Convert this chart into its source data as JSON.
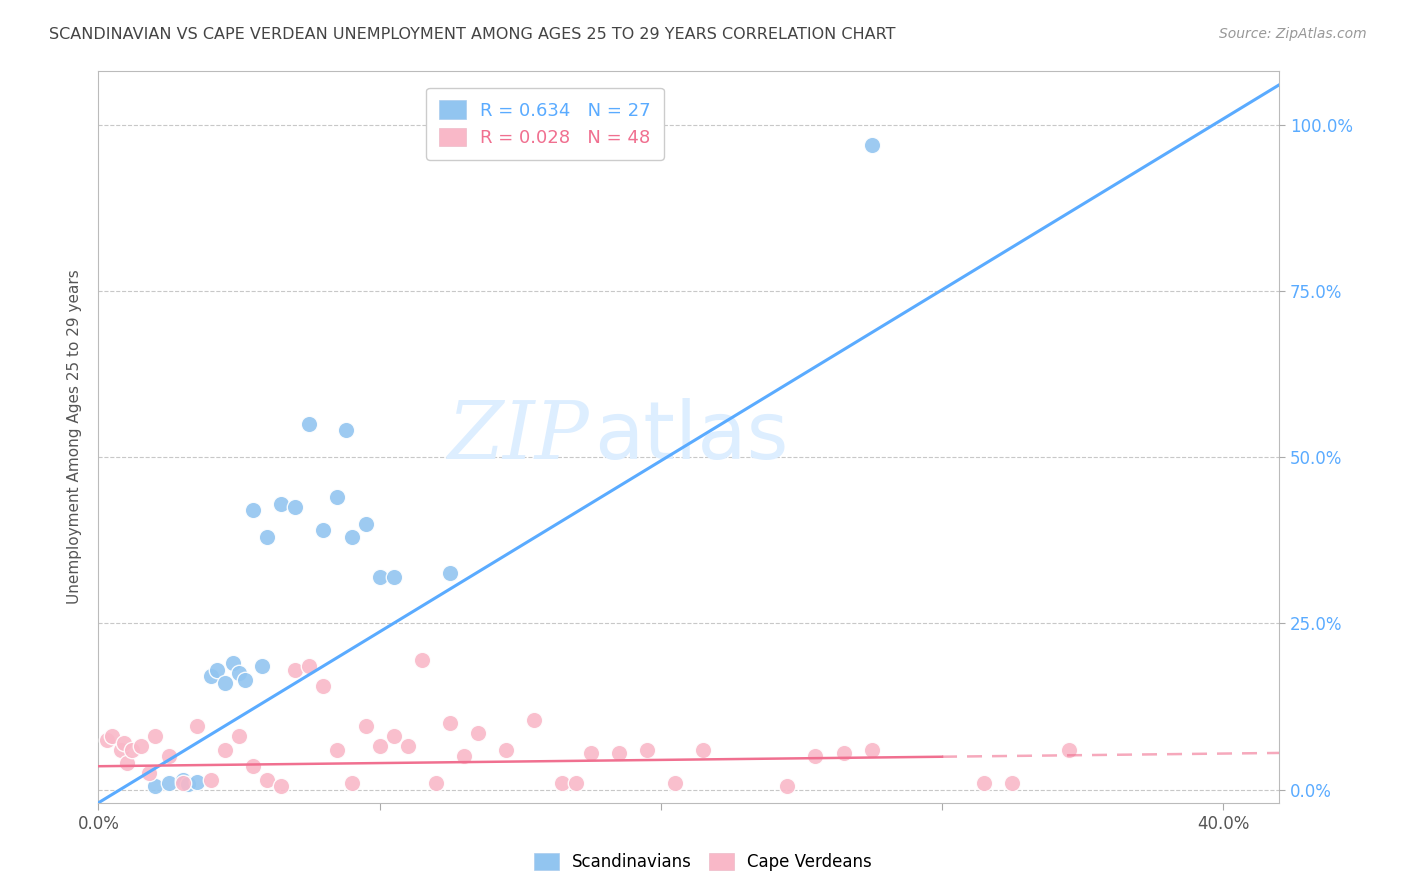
{
  "title": "SCANDINAVIAN VS CAPE VERDEAN UNEMPLOYMENT AMONG AGES 25 TO 29 YEARS CORRELATION CHART",
  "source": "Source: ZipAtlas.com",
  "ylabel": "Unemployment Among Ages 25 to 29 years",
  "blue_R": 0.634,
  "blue_N": 27,
  "pink_R": 0.028,
  "pink_N": 48,
  "background_color": "#ffffff",
  "blue_color": "#92c5f0",
  "pink_color": "#f9b8c8",
  "blue_line_color": "#5aabff",
  "pink_line_color": "#f07090",
  "right_axis_color": "#5aabff",
  "grid_color": "#c8c8c8",
  "title_color": "#444444",
  "watermark_color": "#ddeeff",
  "legend_blue_label": "R = 0.634   N = 27",
  "legend_pink_label": "R = 0.028   N = 48",
  "blue_scatter_x": [
    2.0,
    2.5,
    3.0,
    3.2,
    3.5,
    4.0,
    4.2,
    4.5,
    4.8,
    5.0,
    5.2,
    5.5,
    5.8,
    6.0,
    6.5,
    7.0,
    7.5,
    8.0,
    8.5,
    8.8,
    9.0,
    9.5,
    10.0,
    10.5,
    12.5,
    13.5,
    27.5
  ],
  "blue_scatter_y": [
    0.5,
    1.0,
    1.5,
    0.8,
    1.2,
    17.0,
    18.0,
    16.0,
    19.0,
    17.5,
    16.5,
    42.0,
    18.5,
    38.0,
    43.0,
    42.5,
    55.0,
    39.0,
    44.0,
    54.0,
    38.0,
    40.0,
    32.0,
    32.0,
    32.5,
    97.0,
    97.0
  ],
  "pink_scatter_x": [
    0.3,
    0.5,
    0.8,
    0.9,
    1.0,
    1.2,
    1.5,
    1.8,
    2.0,
    2.5,
    3.0,
    3.5,
    4.0,
    4.5,
    5.0,
    5.5,
    6.0,
    6.5,
    7.0,
    7.5,
    8.0,
    8.5,
    9.0,
    9.5,
    10.0,
    10.5,
    11.0,
    11.5,
    12.0,
    12.5,
    13.0,
    13.5,
    14.5,
    15.5,
    16.5,
    17.0,
    17.5,
    18.5,
    19.5,
    20.5,
    21.5,
    24.5,
    25.5,
    26.5,
    27.5,
    31.5,
    32.5,
    34.5
  ],
  "pink_scatter_y": [
    7.5,
    8.0,
    6.0,
    7.0,
    4.0,
    6.0,
    6.5,
    2.5,
    8.0,
    5.0,
    1.0,
    9.5,
    1.5,
    6.0,
    8.0,
    3.5,
    1.5,
    0.5,
    18.0,
    18.5,
    15.5,
    6.0,
    1.0,
    9.5,
    6.5,
    8.0,
    6.5,
    19.5,
    1.0,
    10.0,
    5.0,
    8.5,
    6.0,
    10.5,
    1.0,
    1.0,
    5.5,
    5.5,
    6.0,
    1.0,
    6.0,
    0.5,
    5.0,
    5.5,
    6.0,
    1.0,
    1.0,
    6.0
  ],
  "xlim": [
    0.0,
    42.0
  ],
  "ylim": [
    -2.0,
    108.0
  ],
  "x_tick_positions": [
    0.0,
    10.0,
    20.0,
    30.0,
    40.0
  ],
  "y_tick_positions": [
    0.0,
    25.0,
    50.0,
    75.0,
    100.0
  ],
  "pink_line_solid_end_x": 30.0,
  "pink_line_y_at_0": 3.5,
  "pink_line_y_at_42": 5.5
}
